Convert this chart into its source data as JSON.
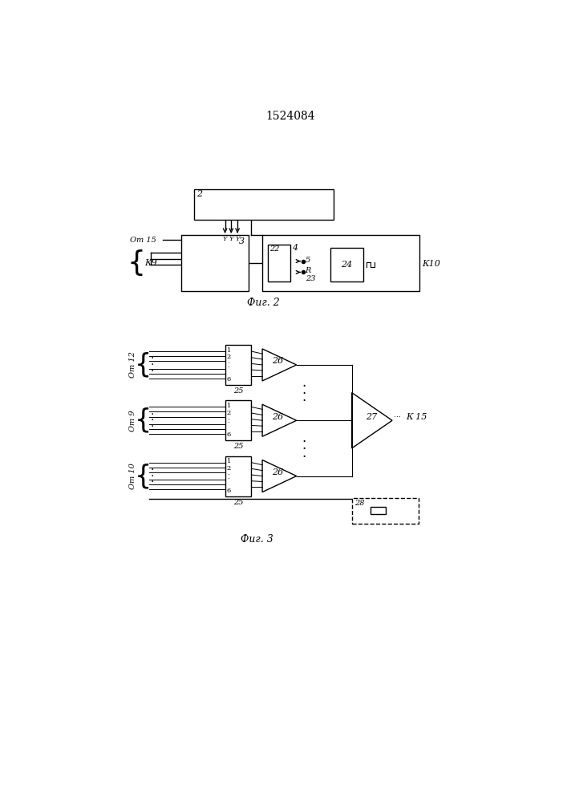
{
  "title": "1524084",
  "bg_color": "#ffffff",
  "line_color": "#000000",
  "lw": 1.0,
  "fig2_caption": "Фиг. 2",
  "fig3_caption": "Фиг. 3",
  "om15_label": "От 15",
  "k9_label": "К9",
  "k10_label": "К10",
  "om12_label": "От 12",
  "om9_label": "От 9",
  "om10_label": "От 10",
  "k15_label": "К 15"
}
